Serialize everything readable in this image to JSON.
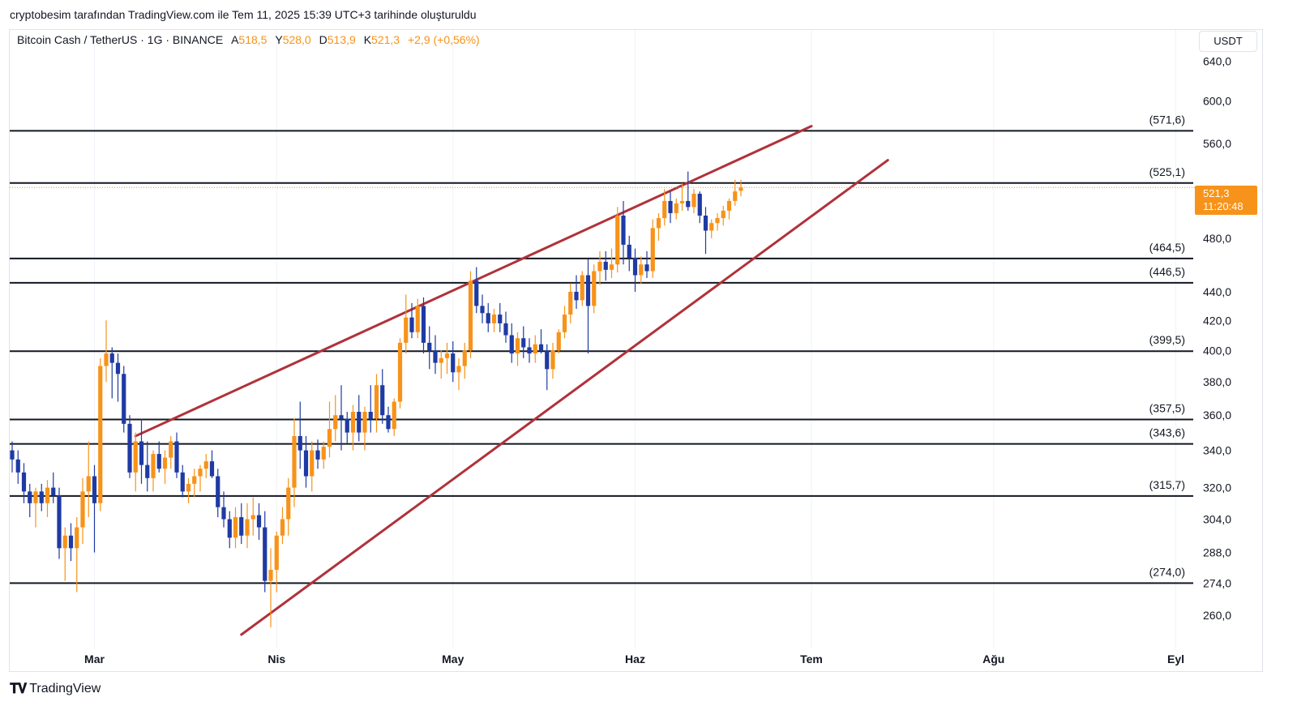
{
  "header": {
    "credit": "cryptobesim tarafından TradingView.com ile Tem 11, 2025 15:39 UTC+3 tarihinde oluşturuldu"
  },
  "legend": {
    "symbol": "Bitcoin Cash / TetherUS · 1G · BINANCE",
    "open_label": "A",
    "open": "518,5",
    "high_label": "Y",
    "high": "528,0",
    "low_label": "D",
    "low": "513,9",
    "close_label": "K",
    "close": "521,3",
    "change": "+2,9 (+0,56%)"
  },
  "price_scale": {
    "currency": "USDT"
  },
  "last_price": {
    "value": "521,3",
    "countdown": "11:20:48"
  },
  "footer": {
    "brand": "TradingView"
  },
  "colors": {
    "up": "#f7931a",
    "down": "#1e3aa3",
    "levels": "#131722",
    "wedge": "#b0323a",
    "last_price": "#f7931a",
    "text": "#131722"
  },
  "chart_data": {
    "type": "candlestick",
    "y_scale": "log",
    "ylim": [
      248,
      662
    ],
    "y_ticks": [
      "640,0",
      "600,0",
      "560,0",
      "480,0",
      "440,0",
      "420,0",
      "400,0",
      "380,0",
      "360,0",
      "340,0",
      "320,0",
      "304,0",
      "288,0",
      "274,0",
      "260,0"
    ],
    "x_ticks": [
      "Mar",
      "Nis",
      "May",
      "Haz",
      "Tem",
      "Ağu",
      "Eyl"
    ],
    "x_tick_days": [
      28,
      59,
      89,
      120,
      150,
      181,
      212
    ],
    "horizontal_levels": [
      {
        "value": 571.6,
        "label": "(571,6)"
      },
      {
        "value": 525.1,
        "label": "(525,1)"
      },
      {
        "value": 464.5,
        "label": "(464,5)"
      },
      {
        "value": 446.5,
        "label": "(446,5)"
      },
      {
        "value": 399.5,
        "label": "(399,5)"
      },
      {
        "value": 357.5,
        "label": "(357,5)"
      },
      {
        "value": 343.6,
        "label": "(343,6)"
      },
      {
        "value": 315.7,
        "label": "(315,7)"
      },
      {
        "value": 274.0,
        "label": "(274,0)"
      }
    ],
    "wedge_lines": [
      {
        "name": "upper",
        "from": [
          35,
          348
        ],
        "to": [
          150,
          576
        ]
      },
      {
        "name": "lower",
        "from": [
          53,
          252
        ],
        "to": [
          163,
          545
        ]
      }
    ],
    "last_price_value": 521.3,
    "candles": [
      [
        14,
        340,
        345,
        328,
        335
      ],
      [
        15,
        335,
        340,
        322,
        328
      ],
      [
        16,
        328,
        333,
        312,
        318
      ],
      [
        17,
        318,
        322,
        305,
        312
      ],
      [
        18,
        312,
        320,
        300,
        318
      ],
      [
        19,
        318,
        322,
        308,
        312
      ],
      [
        20,
        312,
        324,
        305,
        320
      ],
      [
        21,
        320,
        328,
        312,
        316
      ],
      [
        22,
        316,
        320,
        285,
        290
      ],
      [
        23,
        290,
        300,
        275,
        296
      ],
      [
        24,
        296,
        302,
        284,
        290
      ],
      [
        25,
        290,
        305,
        270,
        300
      ],
      [
        26,
        300,
        325,
        292,
        318
      ],
      [
        27,
        318,
        345,
        305,
        326
      ],
      [
        28,
        326,
        332,
        288,
        312
      ],
      [
        29,
        312,
        395,
        308,
        390
      ],
      [
        30,
        390,
        420,
        380,
        398
      ],
      [
        31,
        398,
        402,
        370,
        392
      ],
      [
        32,
        392,
        398,
        368,
        385
      ],
      [
        33,
        385,
        390,
        350,
        355
      ],
      [
        34,
        355,
        360,
        325,
        328
      ],
      [
        35,
        328,
        350,
        318,
        345
      ],
      [
        36,
        345,
        358,
        322,
        332
      ],
      [
        37,
        332,
        345,
        318,
        325
      ],
      [
        38,
        325,
        340,
        318,
        338
      ],
      [
        39,
        338,
        345,
        328,
        330
      ],
      [
        40,
        330,
        340,
        322,
        336
      ],
      [
        41,
        336,
        348,
        330,
        345
      ],
      [
        42,
        345,
        350,
        325,
        328
      ],
      [
        43,
        328,
        332,
        315,
        318
      ],
      [
        44,
        318,
        325,
        312,
        322
      ],
      [
        45,
        322,
        330,
        315,
        326
      ],
      [
        46,
        326,
        332,
        318,
        330
      ],
      [
        47,
        330,
        338,
        325,
        334
      ],
      [
        48,
        334,
        340,
        325,
        326
      ],
      [
        49,
        326,
        330,
        305,
        310
      ],
      [
        50,
        310,
        318,
        300,
        304
      ],
      [
        51,
        304,
        308,
        290,
        295
      ],
      [
        52,
        295,
        310,
        290,
        305
      ],
      [
        53,
        305,
        312,
        292,
        296
      ],
      [
        54,
        296,
        312,
        290,
        304
      ],
      [
        55,
        304,
        315,
        296,
        306
      ],
      [
        56,
        306,
        312,
        294,
        300
      ],
      [
        57,
        300,
        308,
        270,
        275
      ],
      [
        58,
        275,
        290,
        255,
        280
      ],
      [
        59,
        280,
        298,
        270,
        296
      ],
      [
        60,
        296,
        310,
        292,
        304
      ],
      [
        61,
        304,
        325,
        296,
        320
      ],
      [
        62,
        320,
        358,
        310,
        348
      ],
      [
        63,
        348,
        368,
        330,
        340
      ],
      [
        64,
        340,
        348,
        320,
        326
      ],
      [
        65,
        326,
        345,
        318,
        340
      ],
      [
        66,
        340,
        346,
        330,
        335
      ],
      [
        67,
        335,
        345,
        330,
        342
      ],
      [
        68,
        342,
        368,
        336,
        352
      ],
      [
        69,
        352,
        372,
        345,
        360
      ],
      [
        70,
        360,
        378,
        340,
        358
      ],
      [
        71,
        358,
        362,
        344,
        350
      ],
      [
        72,
        350,
        366,
        340,
        362
      ],
      [
        73,
        362,
        372,
        345,
        350
      ],
      [
        74,
        350,
        365,
        340,
        362
      ],
      [
        75,
        362,
        378,
        350,
        358
      ],
      [
        76,
        358,
        385,
        350,
        378
      ],
      [
        77,
        378,
        388,
        355,
        360
      ],
      [
        78,
        360,
        365,
        350,
        352
      ],
      [
        79,
        352,
        370,
        348,
        368
      ],
      [
        80,
        368,
        408,
        364,
        405
      ],
      [
        81,
        405,
        438,
        398,
        422
      ],
      [
        82,
        422,
        432,
        408,
        412
      ],
      [
        83,
        412,
        435,
        408,
        430
      ],
      [
        84,
        430,
        436,
        398,
        405
      ],
      [
        85,
        405,
        416,
        388,
        400
      ],
      [
        86,
        400,
        410,
        385,
        392
      ],
      [
        87,
        392,
        400,
        382,
        395
      ],
      [
        88,
        395,
        405,
        385,
        398
      ],
      [
        89,
        398,
        406,
        380,
        386
      ],
      [
        90,
        386,
        395,
        375,
        390
      ],
      [
        91,
        390,
        405,
        382,
        400
      ],
      [
        92,
        400,
        455,
        395,
        448
      ],
      [
        93,
        448,
        458,
        425,
        430
      ],
      [
        94,
        430,
        438,
        418,
        425
      ],
      [
        95,
        425,
        432,
        412,
        418
      ],
      [
        96,
        418,
        428,
        412,
        424
      ],
      [
        97,
        424,
        432,
        412,
        418
      ],
      [
        98,
        418,
        426,
        405,
        410
      ],
      [
        99,
        410,
        418,
        392,
        398
      ],
      [
        100,
        398,
        412,
        390,
        408
      ],
      [
        101,
        408,
        416,
        395,
        402
      ],
      [
        102,
        402,
        408,
        392,
        398
      ],
      [
        103,
        398,
        410,
        392,
        404
      ],
      [
        104,
        404,
        414,
        398,
        400
      ],
      [
        105,
        400,
        404,
        375,
        388
      ],
      [
        106,
        388,
        405,
        382,
        400
      ],
      [
        107,
        400,
        414,
        398,
        412
      ],
      [
        108,
        412,
        430,
        408,
        424
      ],
      [
        109,
        424,
        446,
        418,
        440
      ],
      [
        110,
        440,
        452,
        428,
        434
      ],
      [
        111,
        434,
        455,
        430,
        452
      ],
      [
        112,
        452,
        464,
        398,
        430
      ],
      [
        113,
        430,
        460,
        425,
        455
      ],
      [
        114,
        455,
        470,
        445,
        462
      ],
      [
        115,
        462,
        470,
        448,
        456
      ],
      [
        116,
        456,
        472,
        450,
        460
      ],
      [
        117,
        460,
        505,
        454,
        498
      ],
      [
        118,
        498,
        510,
        460,
        475
      ],
      [
        119,
        475,
        482,
        455,
        465
      ],
      [
        120,
        465,
        472,
        440,
        452
      ],
      [
        121,
        452,
        466,
        446,
        460
      ],
      [
        122,
        460,
        470,
        450,
        455
      ],
      [
        123,
        455,
        495,
        450,
        488
      ],
      [
        124,
        488,
        500,
        478,
        496
      ],
      [
        125,
        496,
        520,
        490,
        510
      ],
      [
        126,
        510,
        518,
        492,
        500
      ],
      [
        127,
        500,
        512,
        495,
        508
      ],
      [
        128,
        508,
        525,
        502,
        510
      ],
      [
        129,
        510,
        535,
        502,
        505
      ],
      [
        130,
        505,
        520,
        500,
        516
      ],
      [
        131,
        516,
        518,
        492,
        498
      ],
      [
        132,
        498,
        505,
        468,
        486
      ],
      [
        133,
        486,
        495,
        480,
        492
      ],
      [
        134,
        492,
        500,
        486,
        496
      ],
      [
        135,
        496,
        506,
        490,
        502
      ],
      [
        136,
        502,
        512,
        495,
        510
      ],
      [
        137,
        510,
        528,
        506,
        518
      ],
      [
        138,
        518.5,
        528,
        513.9,
        521.3
      ]
    ]
  }
}
